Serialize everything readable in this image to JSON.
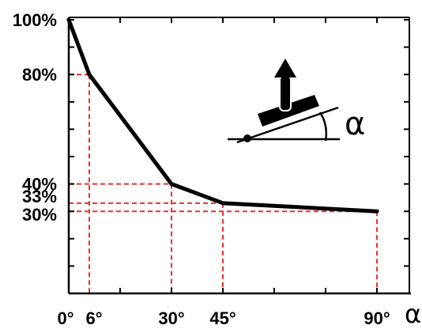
{
  "chart_data": {
    "type": "line",
    "title": "",
    "xlabel": "α",
    "ylabel": "",
    "xlim": [
      0,
      90
    ],
    "ylim": [
      0,
      100
    ],
    "grid": false,
    "legend": "none",
    "x_tick_labels": [
      {
        "value": 0,
        "label": "0°"
      },
      {
        "value": 6,
        "label": "6°"
      },
      {
        "value": 30,
        "label": "30°"
      },
      {
        "value": 45,
        "label": "45°"
      },
      {
        "value": 90,
        "label": "90°"
      }
    ],
    "y_tick_labels": [
      {
        "value": 100,
        "label": "100%"
      },
      {
        "value": 80,
        "label": "80%"
      },
      {
        "value": 40,
        "label": "40%"
      },
      {
        "value": 33,
        "label": "33%"
      },
      {
        "value": 30,
        "label": "30%"
      }
    ],
    "series": [
      {
        "x": [
          0,
          6,
          30,
          45,
          90
        ],
        "y": [
          100,
          80,
          40,
          33,
          30
        ]
      }
    ],
    "reference_points": [
      {
        "x": 6,
        "y": 80
      },
      {
        "x": 30,
        "y": 40
      },
      {
        "x": 45,
        "y": 33
      },
      {
        "x": 90,
        "y": 30
      }
    ],
    "inset_label": "α",
    "colors": {
      "line": "#000000",
      "reference_lines": "#e8312f",
      "axes": "#000000"
    }
  }
}
